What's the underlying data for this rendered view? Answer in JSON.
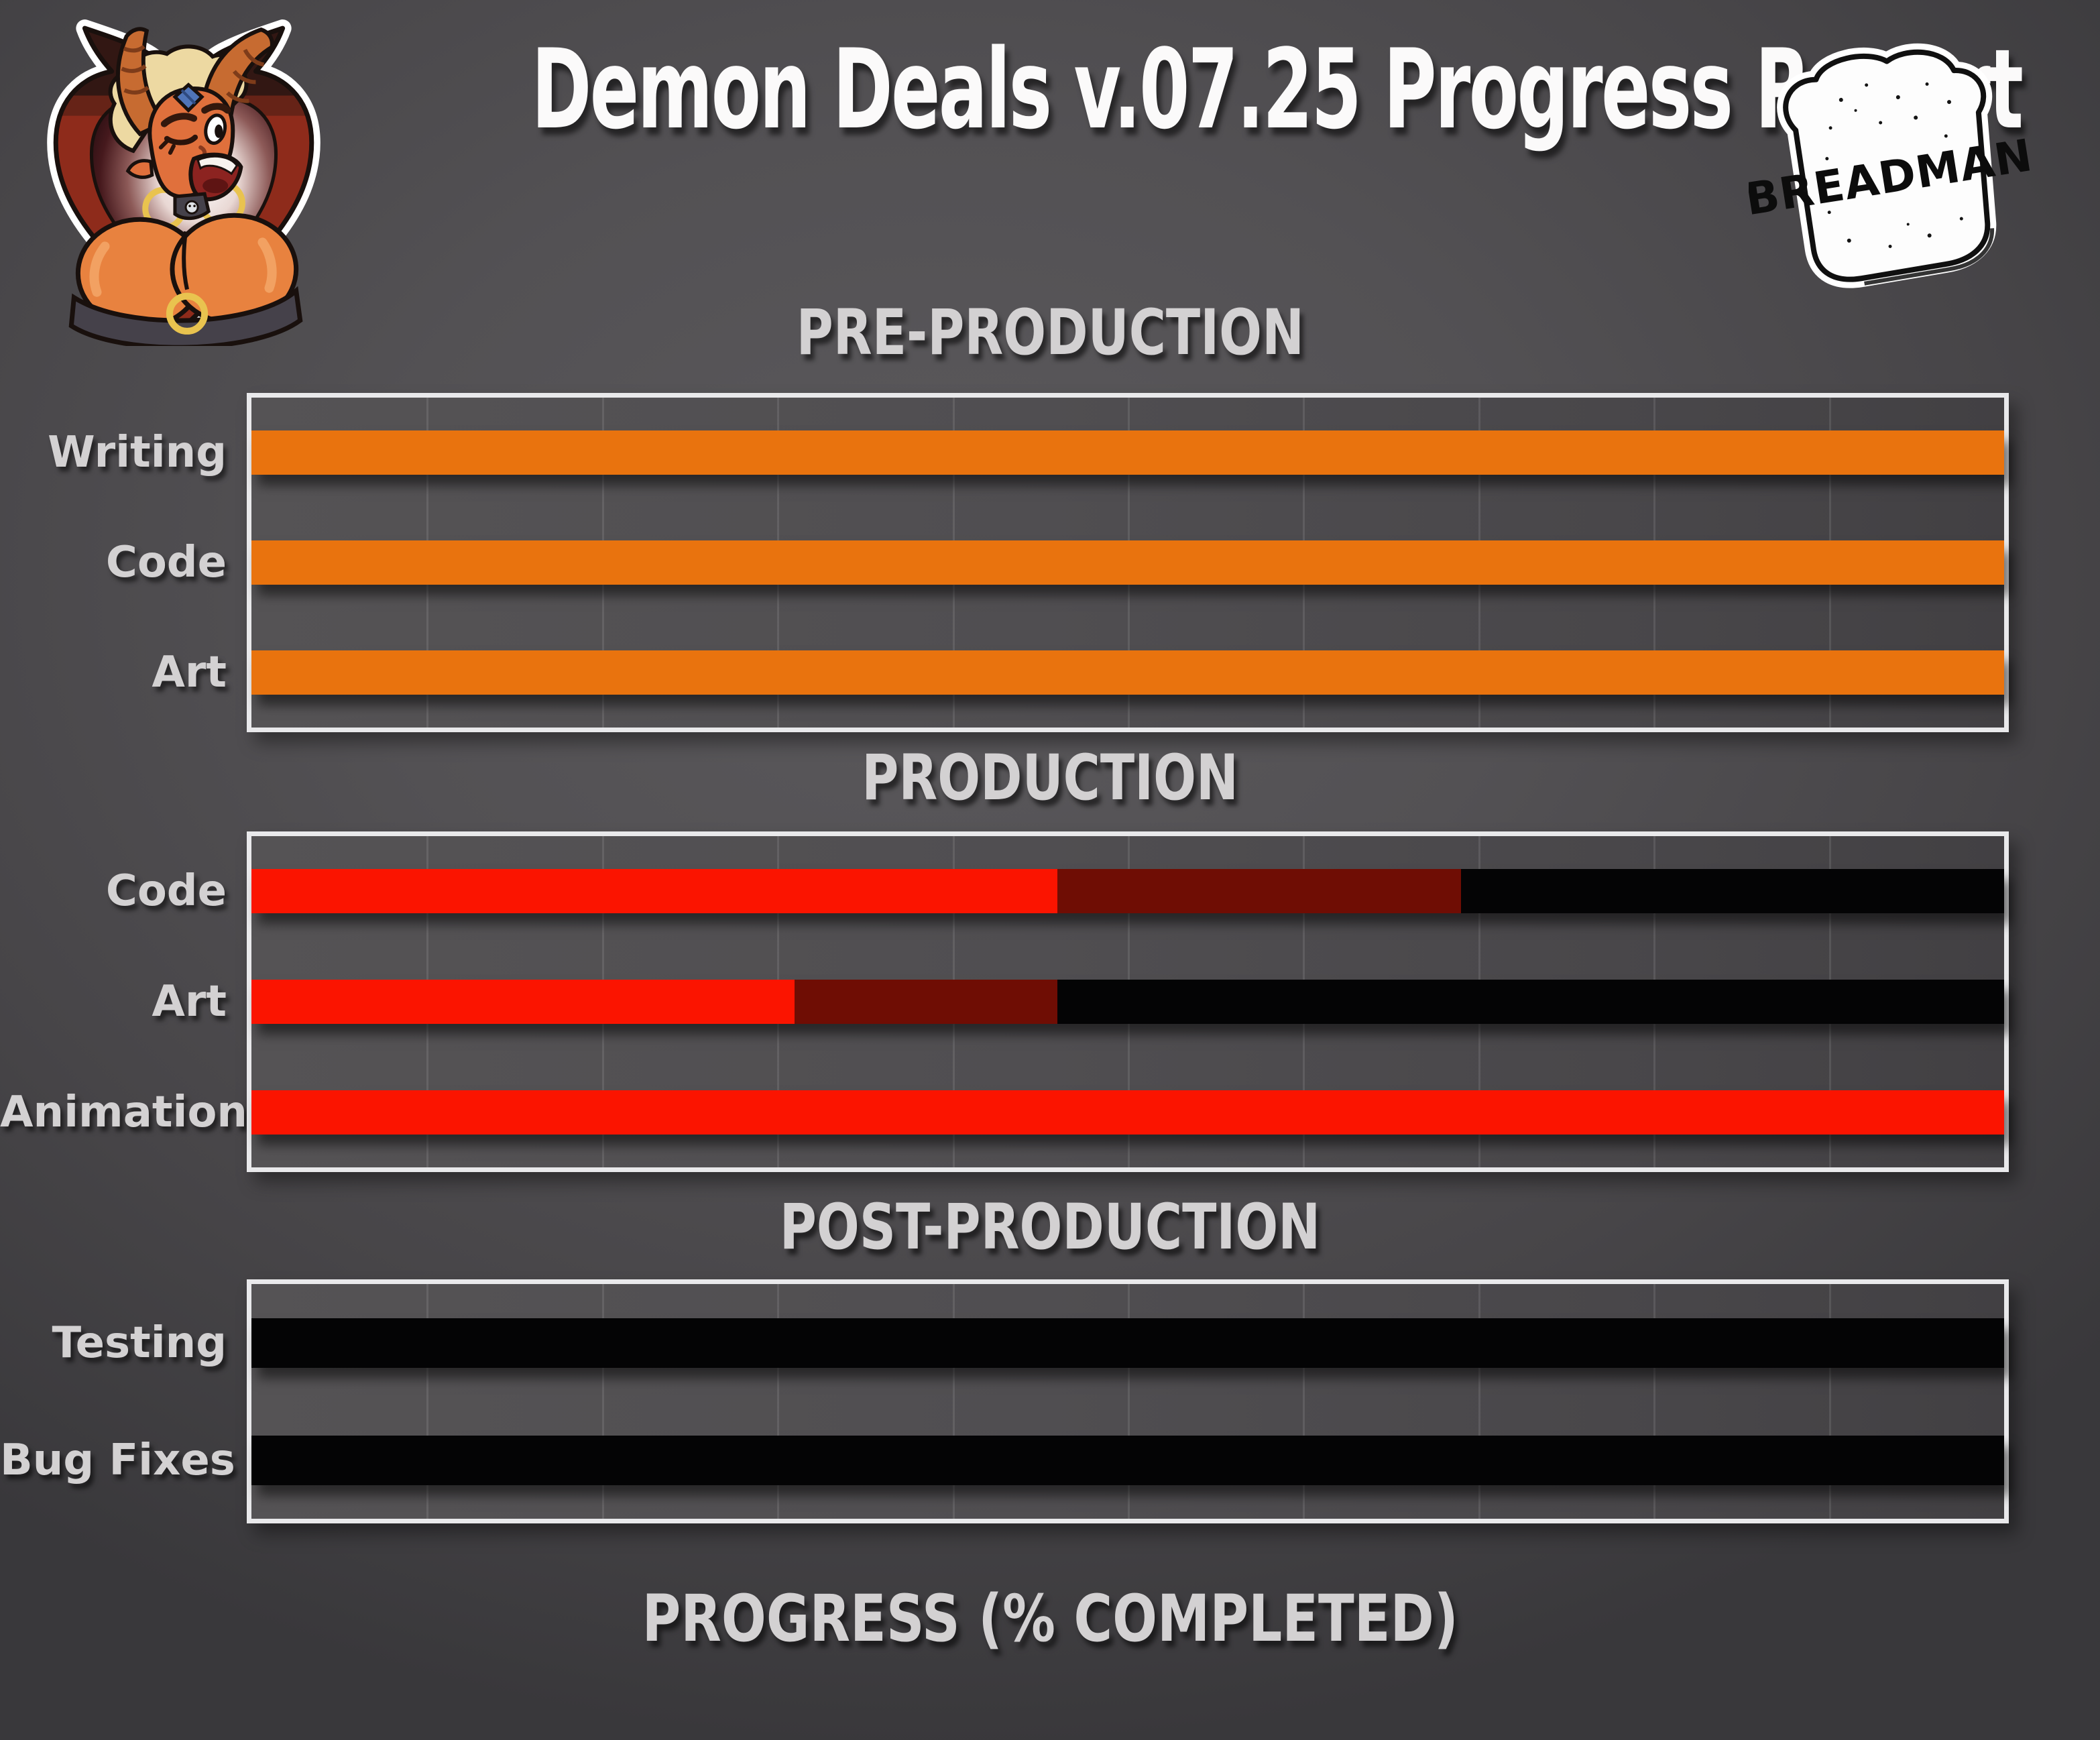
{
  "page": {
    "title": "Demon Deals v.07.25 Progress Report",
    "footer_label": "PROGRESS (% COMPLETED)"
  },
  "logos": {
    "demon_sticker": "demon-girl-heart-sticker",
    "breadman_text": "BREADMAN"
  },
  "palette": {
    "page_bg": "#4B494C",
    "plot_bg": "#504E50",
    "gridline": "rgba(255,255,255,0.10)",
    "frame_border": "#EBEBED",
    "label_text": "#D2D0D1",
    "title_text": "#FBFAFA",
    "preproduction_complete": "#E9730E",
    "production_complete": "#FB1400",
    "production_in_progress": "#6F0D04",
    "not_started": "#040405"
  },
  "chart_data": {
    "type": "bar",
    "orientation": "horizontal",
    "x_axis": {
      "label": "PROGRESS (% COMPLETED)",
      "min": 0,
      "max": 100,
      "gridline_step_pct": 10,
      "tick_labels_visible": false
    },
    "legend": null,
    "sections": [
      {
        "title": "PRE-PRODUCTION",
        "rows": [
          {
            "label": "Writing",
            "completed_pct": 100,
            "segments": [
              {
                "status": "complete",
                "color": "#E9730E",
                "from_pct": 0,
                "to_pct": 100
              }
            ]
          },
          {
            "label": "Code",
            "completed_pct": 100,
            "segments": [
              {
                "status": "complete",
                "color": "#E9730E",
                "from_pct": 0,
                "to_pct": 100
              }
            ]
          },
          {
            "label": "Art",
            "completed_pct": 100,
            "segments": [
              {
                "status": "complete",
                "color": "#E9730E",
                "from_pct": 0,
                "to_pct": 100
              }
            ]
          }
        ]
      },
      {
        "title": "PRODUCTION",
        "rows": [
          {
            "label": "Code",
            "completed_pct": 46,
            "in_progress_to_pct": 69,
            "segments": [
              {
                "status": "complete",
                "color": "#FB1400",
                "from_pct": 0,
                "to_pct": 46
              },
              {
                "status": "in-progress",
                "color": "#6F0D04",
                "from_pct": 46,
                "to_pct": 69
              },
              {
                "status": "not-started",
                "color": "#040405",
                "from_pct": 69,
                "to_pct": 100
              }
            ]
          },
          {
            "label": "Art",
            "completed_pct": 31,
            "in_progress_to_pct": 46,
            "segments": [
              {
                "status": "complete",
                "color": "#FB1400",
                "from_pct": 0,
                "to_pct": 31
              },
              {
                "status": "in-progress",
                "color": "#6F0D04",
                "from_pct": 31,
                "to_pct": 46
              },
              {
                "status": "not-started",
                "color": "#040405",
                "from_pct": 46,
                "to_pct": 100
              }
            ]
          },
          {
            "label": "Animation",
            "completed_pct": 100,
            "segments": [
              {
                "status": "complete",
                "color": "#FB1400",
                "from_pct": 0,
                "to_pct": 100
              }
            ]
          }
        ]
      },
      {
        "title": "POST-PRODUCTION",
        "rows": [
          {
            "label": "Testing",
            "completed_pct": 0,
            "segments": [
              {
                "status": "not-started",
                "color": "#040405",
                "from_pct": 0,
                "to_pct": 100
              }
            ]
          },
          {
            "label": "Bug Fixes",
            "completed_pct": 0,
            "segments": [
              {
                "status": "not-started",
                "color": "#040405",
                "from_pct": 0,
                "to_pct": 100
              }
            ]
          }
        ]
      }
    ]
  }
}
